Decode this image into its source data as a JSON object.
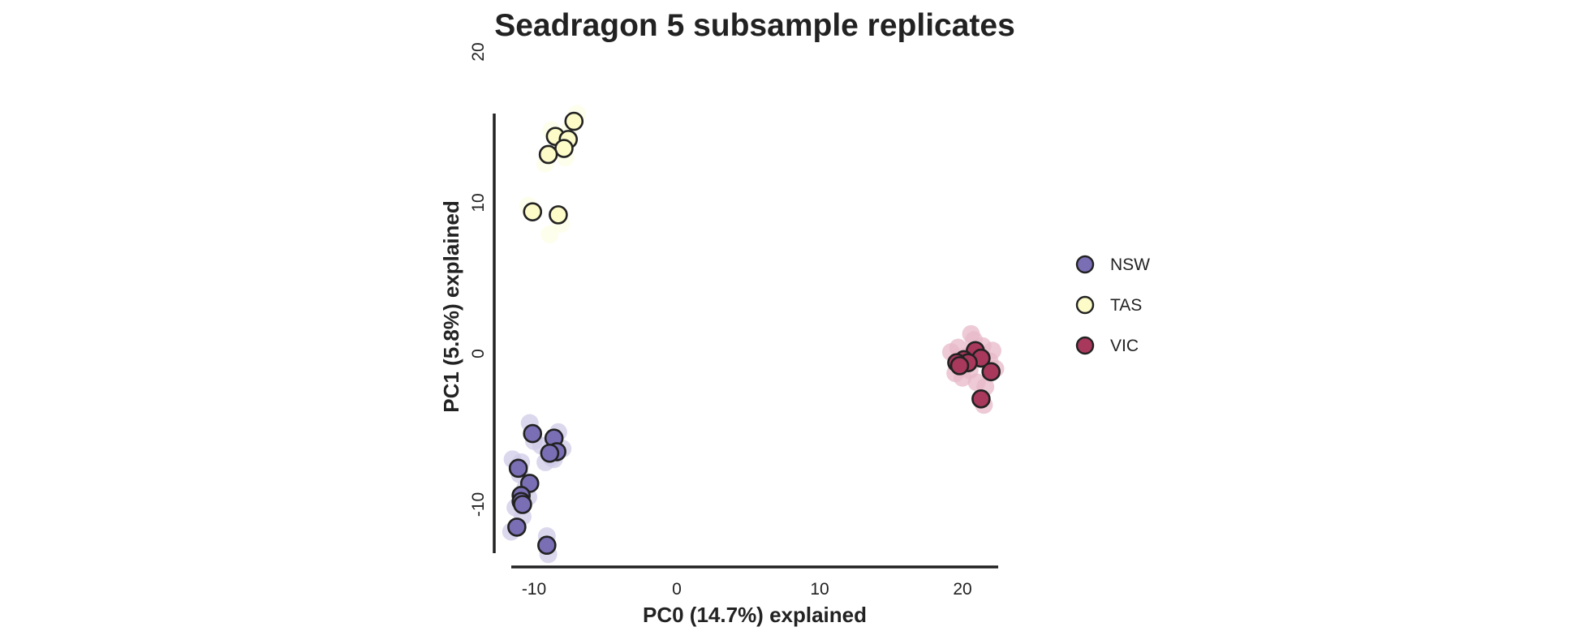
{
  "chart_data": {
    "type": "scatter",
    "title": "Seadragon 5 subsample replicates",
    "xlabel": "PC0 (14.7%) explained",
    "ylabel": "PC1 (5.8%) explained",
    "xlim": [
      -11.2,
      22.5
    ],
    "ylim": [
      -13.6,
      15.9
    ],
    "xticks": [
      {
        "value": -10,
        "label": "-10"
      },
      {
        "value": 0,
        "label": "0"
      },
      {
        "value": 10,
        "label": "10"
      },
      {
        "value": 20,
        "label": "20"
      }
    ],
    "yticks": [
      {
        "value": -10,
        "label": "-10"
      },
      {
        "value": 0,
        "label": "0"
      },
      {
        "value": 10,
        "label": "10"
      },
      {
        "value": 20,
        "label": "20"
      }
    ],
    "grid": false,
    "legend_position": "right",
    "series": [
      {
        "name": "NSW",
        "color": "#7a6fb5",
        "shadow_color": "#cfcbe7",
        "x": [
          -10.1,
          -11.1,
          -10.3,
          -10.9,
          -10.9,
          -10.8,
          -11.2,
          -9.1,
          -8.6,
          -8.4,
          -8.9
        ],
        "y": [
          -5.3,
          -7.6,
          -8.6,
          -9.4,
          -9.8,
          -10.0,
          -11.5,
          -12.7,
          -5.6,
          -6.5,
          -6.6
        ],
        "shadow_x": [
          -10.3,
          -10.0,
          -11.5,
          -11.0,
          -10.6,
          -10.4,
          -11.3,
          -10.8,
          -9.1,
          -9.0,
          -8.7,
          -8.3,
          -8.0,
          -9.2,
          -8.8,
          -9.5,
          -11.6,
          -10.9,
          -8.6
        ],
        "shadow_y": [
          -4.6,
          -5.8,
          -7.0,
          -8.0,
          -8.9,
          -9.5,
          -10.2,
          -10.8,
          -12.1,
          -13.3,
          -6.0,
          -5.2,
          -6.3,
          -7.2,
          -6.9,
          -6.1,
          -11.8,
          -7.2,
          -7.0
        ]
      },
      {
        "name": "TAS",
        "color": "#fdfbc8",
        "shadow_color": "#fefde6",
        "x": [
          -7.2,
          -8.5,
          -7.6,
          -7.9,
          -9.0,
          -10.1,
          -8.3
        ],
        "y": [
          15.4,
          14.4,
          14.2,
          13.6,
          13.2,
          9.4,
          9.2
        ],
        "shadow_x": [
          -7.0,
          -7.5,
          -8.8,
          -9.2,
          -8.9,
          -10.4,
          -8.1,
          -7.8
        ],
        "shadow_y": [
          15.9,
          14.9,
          14.8,
          12.6,
          7.9,
          9.8,
          8.6,
          13.0
        ]
      },
      {
        "name": "VIC",
        "color": "#a8385c",
        "shadow_color": "#e7b8c8",
        "x": [
          20.9,
          21.3,
          20.1,
          20.4,
          19.6,
          19.8,
          22.0,
          21.3
        ],
        "y": [
          0.2,
          -0.3,
          -0.4,
          -0.6,
          -0.6,
          -0.8,
          -1.2,
          -3.0
        ],
        "shadow_x": [
          19.2,
          19.7,
          20.3,
          20.8,
          21.4,
          21.9,
          22.3,
          19.5,
          20.0,
          21.6,
          21.0,
          20.6,
          22.1,
          21.5,
          19.9,
          20.5
        ],
        "shadow_y": [
          0.1,
          0.4,
          -0.2,
          0.9,
          0.5,
          -0.5,
          -1.0,
          -1.3,
          -1.6,
          -2.2,
          -1.9,
          1.3,
          0.2,
          -3.4,
          -0.9,
          -1.1
        ]
      }
    ]
  }
}
